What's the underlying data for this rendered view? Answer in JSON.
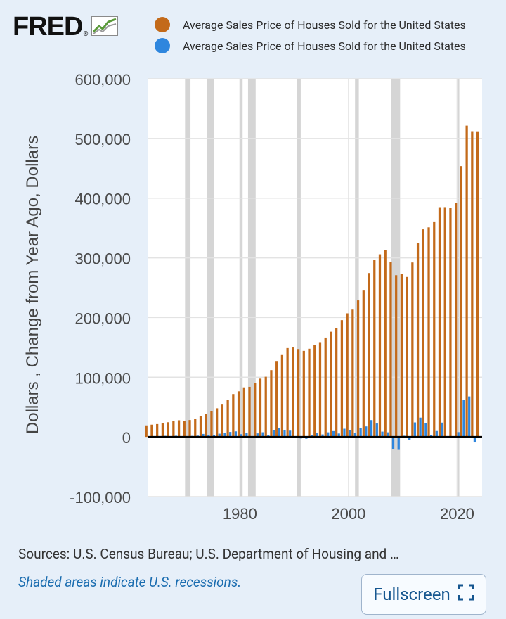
{
  "header": {
    "logo_text": "FRED",
    "logo_reg": "®",
    "logo_icon": "fred-line-graph-icon"
  },
  "legend": [
    {
      "label": "Average Sales Price of Houses Sold for the United States",
      "color": "#c36a1a"
    },
    {
      "label": "Average Sales Price of Houses Sold for the United States",
      "color": "#2e86de"
    }
  ],
  "footer": {
    "sources": "Sources: U.S. Census Bureau; U.S. Department of Housing and …",
    "recession_note": "Shaded areas indicate U.S. recessions.",
    "fullscreen_label": "Fullscreen",
    "fullscreen_icon": "expand-corners-icon"
  },
  "colors": {
    "level": "#c36a1a",
    "change": "#2e86de",
    "recession": "#d5d5d5",
    "plot_bg": "#ffffff",
    "page_bg": "#e6eff9",
    "link": "#1b6db0"
  },
  "chart_data": {
    "type": "bar",
    "title": "",
    "xlabel": "",
    "ylabel": "Dollars , Change from Year Ago, Dollars",
    "ylim": [
      -100000,
      600000
    ],
    "yticks": [
      600000,
      500000,
      400000,
      300000,
      200000,
      100000,
      0,
      -100000
    ],
    "ytick_labels": [
      "600,000",
      "500,000",
      "400,000",
      "300,000",
      "200,000",
      "100,000",
      "0",
      "-100,000"
    ],
    "xlim": [
      1963,
      2024.6
    ],
    "xticks": [
      1980,
      2000,
      2020
    ],
    "xtick_labels": [
      "1980",
      "2000",
      "2020"
    ],
    "grid": true,
    "recessions": [
      [
        1969.9,
        1970.9
      ],
      [
        1973.9,
        1975.2
      ],
      [
        1980.0,
        1980.5
      ],
      [
        1981.5,
        1982.9
      ],
      [
        1990.5,
        1991.2
      ],
      [
        2001.2,
        2001.9
      ],
      [
        2007.9,
        2009.5
      ],
      [
        2020.1,
        2020.4
      ]
    ],
    "x": [
      1963,
      1964,
      1965,
      1966,
      1967,
      1968,
      1969,
      1970,
      1971,
      1972,
      1973,
      1974,
      1975,
      1976,
      1977,
      1978,
      1979,
      1980,
      1981,
      1982,
      1983,
      1984,
      1985,
      1986,
      1987,
      1988,
      1989,
      1990,
      1991,
      1992,
      1993,
      1994,
      1995,
      1996,
      1997,
      1998,
      1999,
      2000,
      2001,
      2002,
      2003,
      2004,
      2005,
      2006,
      2007,
      2008,
      2009,
      2010,
      2011,
      2012,
      2013,
      2014,
      2015,
      2016,
      2017,
      2018,
      2019,
      2020,
      2021,
      2022,
      2023,
      2024
    ],
    "series": [
      {
        "name": "Average Sales Price of Houses Sold for the United States",
        "values": [
          19300,
          20500,
          21500,
          23300,
          24600,
          26600,
          27900,
          26600,
          28300,
          30500,
          35500,
          38900,
          42600,
          48000,
          54200,
          62500,
          71800,
          76400,
          83000,
          83900,
          89800,
          97600,
          100800,
          111900,
          127200,
          138300,
          148800,
          149800,
          147200,
          144100,
          147700,
          154500,
          158700,
          166400,
          176200,
          181900,
          195600,
          207000,
          213200,
          228700,
          246300,
          274500,
          297000,
          305900,
          313600,
          292600,
          270900,
          272900,
          267900,
          292200,
          324500,
          347700,
          351000,
          360900,
          384900,
          385000,
          383900,
          391900,
          453700,
          521500,
          512200,
          512000
        ]
      },
      {
        "name": "Average Sales Price of Houses Sold for the United States",
        "values": [
          null,
          1200,
          1000,
          1800,
          1300,
          2000,
          1300,
          -1300,
          1700,
          2200,
          5000,
          3400,
          3700,
          5400,
          6200,
          8300,
          9300,
          4600,
          6600,
          900,
          5900,
          7800,
          3200,
          11100,
          15300,
          11100,
          10500,
          1000,
          -2600,
          -3100,
          3600,
          6800,
          4200,
          7700,
          9800,
          5700,
          13700,
          11400,
          6200,
          15500,
          17600,
          28200,
          22500,
          8900,
          7700,
          -21000,
          -21700,
          2000,
          -5000,
          24300,
          32300,
          23200,
          3300,
          9900,
          24000,
          100,
          -1100,
          8000,
          61800,
          67800,
          -9300,
          -200
        ]
      }
    ]
  }
}
